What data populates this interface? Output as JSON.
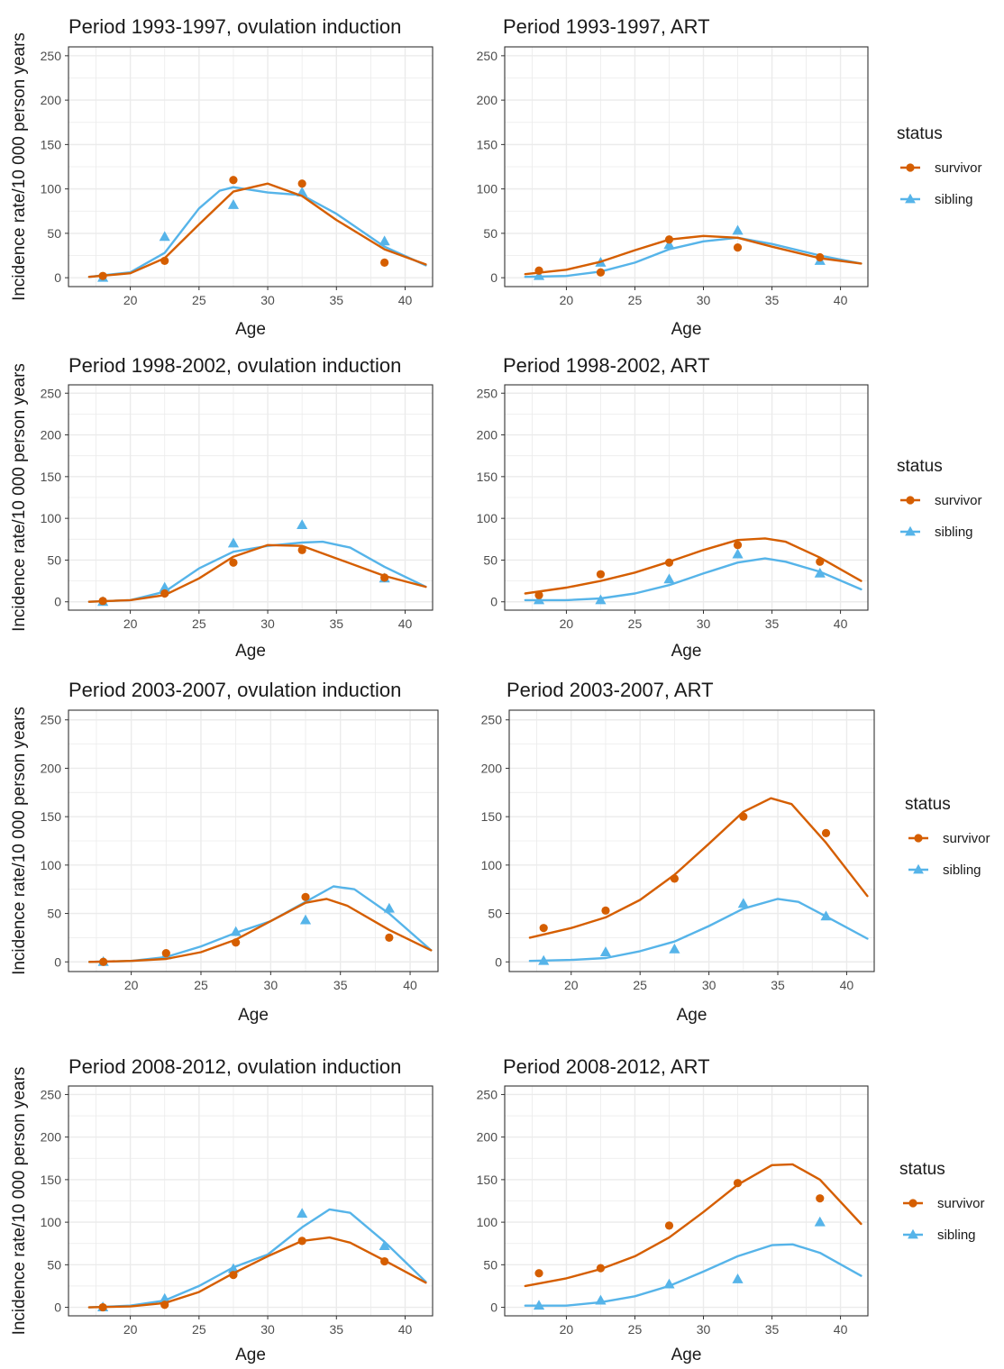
{
  "colors": {
    "survivor": "#D55E00",
    "sibling": "#56B4E9",
    "grid": "#ebebeb",
    "panel_border": "#333333"
  },
  "y_axis_label": "Incidence rate/10 000 person years",
  "x_axis_label": "Age",
  "legend": {
    "title": "status",
    "items": [
      "survivor",
      "sibling"
    ],
    "position": "right"
  },
  "chart_data": [
    {
      "type": "line",
      "title": "Period 1993-1997, ovulation induction",
      "xlabel": "Age",
      "ylabel": "Incidence rate/10 000 person years",
      "xlim": [
        15.5,
        42
      ],
      "ylim": [
        -10,
        260
      ],
      "grid": true,
      "xticks": [
        20,
        25,
        30,
        35,
        40
      ],
      "yticks": [
        0,
        50,
        100,
        150,
        200,
        250
      ],
      "series": [
        {
          "name": "survivor",
          "points": {
            "x": [
              18,
              22.5,
              27.5,
              32.5,
              38.5
            ],
            "y": [
              2,
              19,
              110,
              106,
              17
            ]
          },
          "curve": {
            "x": [
              17,
              20,
              22.5,
              25,
              27.5,
              30,
              32.5,
              35,
              38.5,
              41.5
            ],
            "y": [
              1,
              5,
              22,
              60,
              97,
              106,
              92,
              65,
              32,
              15
            ]
          }
        },
        {
          "name": "sibling",
          "points": {
            "x": [
              18,
              22.5,
              27.5,
              32.5,
              38.5
            ],
            "y": [
              0,
              46,
              82,
              96,
              41
            ]
          },
          "curve": {
            "x": [
              17,
              20,
              22.5,
              25,
              26.5,
              27.5,
              30,
              32.5,
              35,
              38.5,
              41.5
            ],
            "y": [
              1,
              6,
              28,
              78,
              98,
              102,
              96,
              93,
              72,
              35,
              14
            ]
          }
        }
      ]
    },
    {
      "type": "line",
      "title": "Period 1993-1997, ART",
      "xlabel": "Age",
      "ylabel": "",
      "xlim": [
        15.5,
        42
      ],
      "ylim": [
        -10,
        260
      ],
      "grid": true,
      "xticks": [
        20,
        25,
        30,
        35,
        40
      ],
      "yticks": [
        0,
        50,
        100,
        150,
        200,
        250
      ],
      "series": [
        {
          "name": "survivor",
          "points": {
            "x": [
              18,
              22.5,
              27.5,
              32.5,
              38.5
            ],
            "y": [
              8,
              6,
              43,
              34,
              23
            ]
          },
          "curve": {
            "x": [
              17,
              20,
              22.5,
              25,
              27.5,
              30,
              32.5,
              35,
              38.5,
              41.5
            ],
            "y": [
              4,
              9,
              18,
              31,
              43,
              47,
              45,
              35,
              22,
              16
            ]
          }
        },
        {
          "name": "sibling",
          "points": {
            "x": [
              18,
              22.5,
              27.5,
              32.5,
              38.5
            ],
            "y": [
              2,
              17,
              37,
              53,
              19
            ]
          },
          "curve": {
            "x": [
              17,
              20,
              22.5,
              25,
              27.5,
              30,
              32.5,
              35,
              38.5,
              41.5
            ],
            "y": [
              1,
              2,
              7,
              17,
              32,
              41,
              45,
              38,
              25,
              16
            ]
          }
        }
      ]
    },
    {
      "type": "line",
      "title": "Period 1998-2002, ovulation induction",
      "xlabel": "Age",
      "ylabel": "Incidence rate/10 000 person years",
      "xlim": [
        15.5,
        42
      ],
      "ylim": [
        -10,
        260
      ],
      "grid": true,
      "xticks": [
        20,
        25,
        30,
        35,
        40
      ],
      "yticks": [
        0,
        50,
        100,
        150,
        200,
        250
      ],
      "series": [
        {
          "name": "survivor",
          "points": {
            "x": [
              18,
              22.5,
              27.5,
              32.5,
              38.5
            ],
            "y": [
              1,
              10,
              47,
              62,
              29
            ]
          },
          "curve": {
            "x": [
              17,
              20,
              22.5,
              25,
              27.5,
              30,
              32.5,
              35,
              38.5,
              41.5
            ],
            "y": [
              0,
              2,
              8,
              28,
              54,
              68,
              67,
              52,
              31,
              18
            ]
          }
        },
        {
          "name": "sibling",
          "points": {
            "x": [
              18,
              22.5,
              27.5,
              32.5,
              38.5
            ],
            "y": [
              0,
              17,
              70,
              92,
              28
            ]
          },
          "curve": {
            "x": [
              17,
              20,
              22.5,
              25,
              27.5,
              30,
              32.5,
              34,
              36,
              38.5,
              41.5
            ],
            "y": [
              0,
              2,
              12,
              40,
              60,
              67,
              71,
              72,
              65,
              42,
              18
            ]
          }
        }
      ]
    },
    {
      "type": "line",
      "title": "Period 1998-2002, ART",
      "xlabel": "Age",
      "ylabel": "",
      "xlim": [
        15.5,
        42
      ],
      "ylim": [
        -10,
        260
      ],
      "grid": true,
      "xticks": [
        20,
        25,
        30,
        35,
        40
      ],
      "yticks": [
        0,
        50,
        100,
        150,
        200,
        250
      ],
      "series": [
        {
          "name": "survivor",
          "points": {
            "x": [
              18,
              22.5,
              27.5,
              32.5,
              38.5
            ],
            "y": [
              8,
              33,
              47,
              68,
              48
            ]
          },
          "curve": {
            "x": [
              17,
              20,
              22.5,
              25,
              27.5,
              30,
              32.5,
              34.5,
              36,
              38.5,
              41.5
            ],
            "y": [
              10,
              17,
              25,
              35,
              48,
              62,
              74,
              76,
              72,
              53,
              25
            ]
          }
        },
        {
          "name": "sibling",
          "points": {
            "x": [
              18,
              22.5,
              27.5,
              32.5,
              38.5
            ],
            "y": [
              2,
              2,
              27,
              57,
              34
            ]
          },
          "curve": {
            "x": [
              17,
              20,
              22.5,
              25,
              27.5,
              30,
              32.5,
              34.5,
              36,
              38.5,
              41.5
            ],
            "y": [
              2,
              2,
              4,
              10,
              20,
              34,
              47,
              52,
              48,
              36,
              15
            ]
          }
        }
      ]
    },
    {
      "type": "line",
      "title": "Period 2003-2007, ovulation induction",
      "xlabel": "Age",
      "ylabel": "Incidence rate/10 000 person years",
      "xlim": [
        15.5,
        42
      ],
      "ylim": [
        -10,
        260
      ],
      "grid": true,
      "xticks": [
        20,
        25,
        30,
        35,
        40
      ],
      "yticks": [
        0,
        50,
        100,
        150,
        200,
        250
      ],
      "series": [
        {
          "name": "survivor",
          "points": {
            "x": [
              18,
              22.5,
              27.5,
              32.5,
              38.5
            ],
            "y": [
              0,
              9,
              20,
              67,
              25
            ]
          },
          "curve": {
            "x": [
              17,
              20,
              22.5,
              25,
              27.5,
              30,
              32.5,
              34,
              35.5,
              38.5,
              41.5
            ],
            "y": [
              0,
              1,
              3,
              10,
              23,
              42,
              61,
              65,
              58,
              33,
              12
            ]
          }
        },
        {
          "name": "sibling",
          "points": {
            "x": [
              18,
              22.5,
              27.5,
              32.5,
              38.5
            ],
            "y": [
              0,
              7,
              31,
              43,
              55
            ]
          },
          "curve": {
            "x": [
              17,
              20,
              22.5,
              25,
              27.5,
              30,
              32.5,
              34.5,
              36,
              38.5,
              41.5
            ],
            "y": [
              0,
              1,
              5,
              16,
              30,
              42,
              62,
              78,
              75,
              50,
              12
            ]
          }
        }
      ]
    },
    {
      "type": "line",
      "title": "Period 2003-2007, ART",
      "xlabel": "Age",
      "ylabel": "",
      "xlim": [
        15.5,
        42
      ],
      "ylim": [
        -10,
        260
      ],
      "grid": true,
      "xticks": [
        20,
        25,
        30,
        35,
        40
      ],
      "yticks": [
        0,
        50,
        100,
        150,
        200,
        250
      ],
      "series": [
        {
          "name": "survivor",
          "points": {
            "x": [
              18,
              22.5,
              27.5,
              32.5,
              38.5
            ],
            "y": [
              35,
              53,
              86,
              150,
              133
            ]
          },
          "curve": {
            "x": [
              17,
              20,
              22.5,
              25,
              27.5,
              30,
              32.5,
              34.5,
              36,
              38.5,
              41.5
            ],
            "y": [
              25,
              35,
              46,
              64,
              90,
              122,
              155,
              169,
              163,
              123,
              68
            ]
          }
        },
        {
          "name": "sibling",
          "points": {
            "x": [
              18,
              22.5,
              27.5,
              32.5,
              38.5
            ],
            "y": [
              1,
              10,
              13,
              60,
              47
            ]
          },
          "curve": {
            "x": [
              17,
              20,
              22.5,
              25,
              27.5,
              30,
              32.5,
              35,
              36.5,
              38.5,
              41.5
            ],
            "y": [
              1,
              2,
              4,
              11,
              21,
              37,
              55,
              65,
              62,
              47,
              24
            ]
          }
        }
      ]
    },
    {
      "type": "line",
      "title": "Period 2008-2012, ovulation induction",
      "xlabel": "Age",
      "ylabel": "Incidence rate/10 000 person years",
      "xlim": [
        15.5,
        42
      ],
      "ylim": [
        -10,
        260
      ],
      "grid": true,
      "xticks": [
        20,
        25,
        30,
        35,
        40
      ],
      "yticks": [
        0,
        50,
        100,
        150,
        200,
        250
      ],
      "series": [
        {
          "name": "survivor",
          "points": {
            "x": [
              18,
              22.5,
              27.5,
              32.5,
              38.5
            ],
            "y": [
              0,
              3,
              38,
              78,
              54
            ]
          },
          "curve": {
            "x": [
              17,
              20,
              22.5,
              25,
              27.5,
              30,
              32.5,
              34.5,
              36,
              38.5,
              41.5
            ],
            "y": [
              0,
              1,
              5,
              18,
              40,
              60,
              78,
              82,
              76,
              55,
              29
            ]
          }
        },
        {
          "name": "sibling",
          "points": {
            "x": [
              18,
              22.5,
              27.5,
              32.5,
              38.5
            ],
            "y": [
              0,
              10,
              45,
              110,
              72
            ]
          },
          "curve": {
            "x": [
              17,
              20,
              22.5,
              25,
              27.5,
              30,
              32.5,
              34.5,
              36,
              38.5,
              41.5
            ],
            "y": [
              0,
              2,
              8,
              25,
              47,
              62,
              94,
              115,
              111,
              77,
              30
            ]
          }
        }
      ]
    },
    {
      "type": "line",
      "title": "Period 2008-2012, ART",
      "xlabel": "Age",
      "ylabel": "",
      "xlim": [
        15.5,
        42
      ],
      "ylim": [
        -10,
        260
      ],
      "grid": true,
      "xticks": [
        20,
        25,
        30,
        35,
        40
      ],
      "yticks": [
        0,
        50,
        100,
        150,
        200,
        250
      ],
      "series": [
        {
          "name": "survivor",
          "points": {
            "x": [
              18,
              22.5,
              27.5,
              32.5,
              38.5
            ],
            "y": [
              40,
              46,
              96,
              146,
              128
            ]
          },
          "curve": {
            "x": [
              17,
              20,
              22.5,
              25,
              27.5,
              30,
              32.5,
              35,
              36.5,
              38.5,
              41.5
            ],
            "y": [
              25,
              34,
              45,
              60,
              82,
              112,
              144,
              167,
              168,
              150,
              98
            ]
          }
        },
        {
          "name": "sibling",
          "points": {
            "x": [
              18,
              22.5,
              27.5,
              32.5,
              38.5
            ],
            "y": [
              2,
              8,
              27,
              33,
              100
            ]
          },
          "curve": {
            "x": [
              17,
              20,
              22.5,
              25,
              27.5,
              30,
              32.5,
              35,
              36.5,
              38.5,
              41.5
            ],
            "y": [
              2,
              2,
              6,
              13,
              25,
              42,
              60,
              73,
              74,
              64,
              37
            ]
          }
        }
      ]
    }
  ]
}
